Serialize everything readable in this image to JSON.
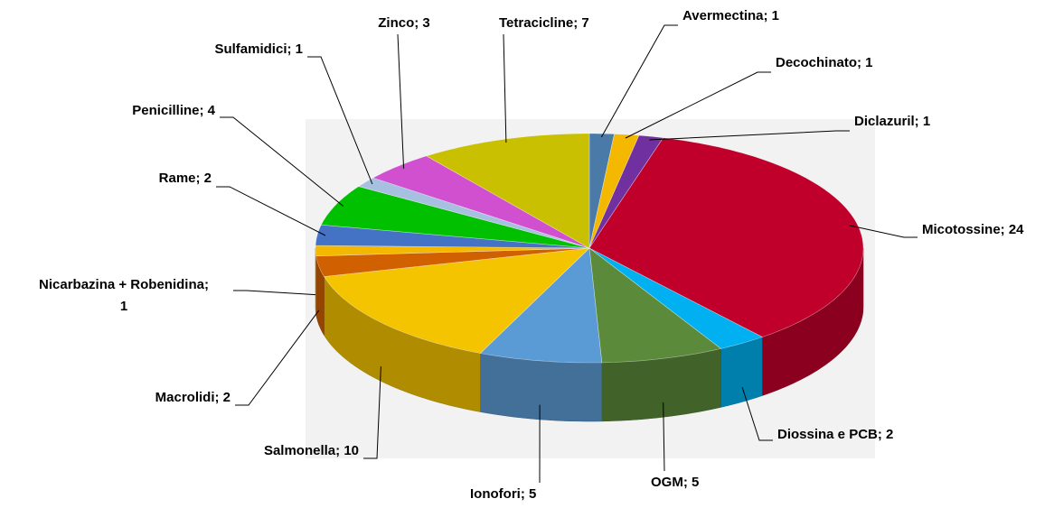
{
  "chart_data": {
    "type": "pie3d",
    "labels": [
      [
        "Avermectina; 1"
      ],
      [
        "Decochinato; 1"
      ],
      [
        "Diclazuril; 1"
      ],
      [
        "Micotossine; 24"
      ],
      [
        "Diossina e PCB; 2"
      ],
      [
        "OGM; 5"
      ],
      [
        "Ionofori; 5"
      ],
      [
        "Salmonella; 10"
      ],
      [
        "Macrolidi; 2"
      ],
      [
        "Nicarbazina + Robenidina;",
        "1"
      ],
      [
        "Rame; 2"
      ],
      [
        "Penicilline; 4"
      ],
      [
        "Sulfamidici; 1"
      ],
      [
        "Zinco; 3"
      ],
      [
        "Tetracicline; 7"
      ]
    ],
    "values": [
      1,
      1,
      1,
      24,
      2,
      5,
      5,
      10,
      2,
      1,
      2,
      4,
      1,
      3,
      7
    ],
    "colors": [
      "#4a7aa8",
      "#f5b800",
      "#7030a0",
      "#c0002a",
      "#00b0f0",
      "#5a8a3a",
      "#5b9bd5",
      "#f5c400",
      "#d06000",
      "#f5b800",
      "#4472c4",
      "#00c000",
      "#a8c0e0",
      "#d050d0",
      "#c8c000"
    ]
  }
}
